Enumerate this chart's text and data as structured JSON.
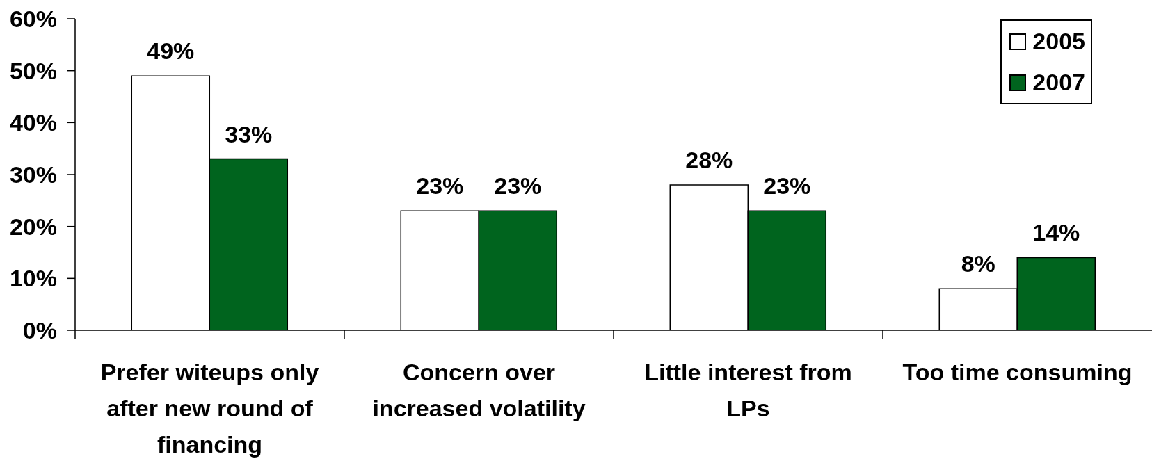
{
  "chart_data": {
    "type": "bar",
    "categories": [
      "Prefer witeups only after new round of financing",
      "Concern over increased volatility",
      "Little interest from LPs",
      "Too time consuming"
    ],
    "series": [
      {
        "name": "2005",
        "color": "#ffffff",
        "values": [
          49,
          23,
          28,
          8
        ],
        "value_labels": [
          "49%",
          "23%",
          "28%",
          "8%"
        ]
      },
      {
        "name": "2007",
        "color": "#00641e",
        "values": [
          33,
          23,
          23,
          14
        ],
        "value_labels": [
          "33%",
          "23%",
          "23%",
          "14%"
        ]
      }
    ],
    "ylim": [
      0,
      60
    ],
    "yticks": [
      {
        "value": 0,
        "label": "0%"
      },
      {
        "value": 10,
        "label": "10%"
      },
      {
        "value": 20,
        "label": "20%"
      },
      {
        "value": 30,
        "label": "30%"
      },
      {
        "value": 40,
        "label": "40%"
      },
      {
        "value": 50,
        "label": "50%"
      },
      {
        "value": 60,
        "label": "60%"
      }
    ],
    "legend": "top right"
  }
}
